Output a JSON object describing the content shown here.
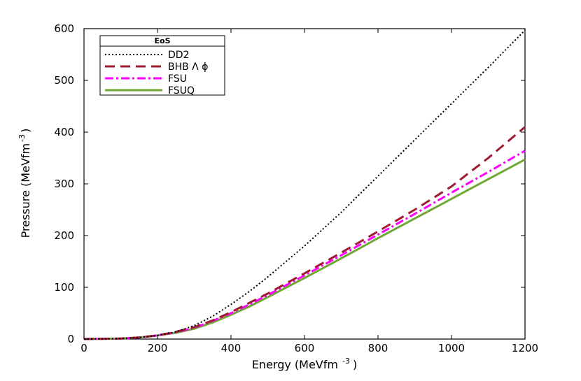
{
  "chart_data": {
    "type": "line",
    "xlabel": "Energy (MeVfm",
    "xlabel_sup": "-3",
    "xlabel_end": ")",
    "ylabel": "Pressure (MeVfm",
    "ylabel_sup": "-3",
    "ylabel_end": ")",
    "xlim": [
      0,
      1200
    ],
    "ylim": [
      0,
      600
    ],
    "xticks": [
      0,
      200,
      400,
      600,
      800,
      1000,
      1200
    ],
    "yticks": [
      0,
      100,
      200,
      300,
      400,
      500,
      600
    ],
    "grid": false,
    "legend": {
      "title": "EoS",
      "placement": "top-left"
    },
    "series": [
      {
        "name": "DD2",
        "color": "#000000",
        "style": "dotted",
        "x": [
          0,
          100,
          150,
          200,
          250,
          300,
          350,
          400,
          450,
          500,
          600,
          700,
          800,
          900,
          1000,
          1100,
          1200
        ],
        "y": [
          0,
          1,
          3,
          7,
          14,
          26,
          44,
          67,
          92,
          120,
          180,
          245,
          315,
          385,
          455,
          525,
          597
        ]
      },
      {
        "name": "BHB Λ ϕ",
        "color": "#9e1b32",
        "style": "dashed",
        "x": [
          0,
          100,
          150,
          200,
          250,
          300,
          350,
          400,
          450,
          500,
          600,
          700,
          800,
          900,
          1000,
          1100,
          1200
        ],
        "y": [
          0,
          1,
          3,
          7,
          14,
          23,
          36,
          52,
          70,
          88,
          127,
          167,
          208,
          250,
          295,
          350,
          410
        ]
      },
      {
        "name": "FSU",
        "color": "#ff00ff",
        "style": "dashdot",
        "x": [
          0,
          100,
          150,
          200,
          250,
          300,
          350,
          400,
          450,
          500,
          600,
          700,
          800,
          900,
          1000,
          1100,
          1200
        ],
        "y": [
          0,
          1,
          3,
          7,
          13,
          22,
          35,
          50,
          67,
          85,
          123,
          162,
          202,
          242,
          283,
          323,
          364
        ]
      },
      {
        "name": "FSUQ",
        "color": "#6ea832",
        "style": "solid",
        "x": [
          0,
          100,
          150,
          200,
          250,
          300,
          350,
          400,
          450,
          500,
          600,
          700,
          800,
          900,
          1000,
          1100,
          1200
        ],
        "y": [
          0,
          1,
          3,
          7,
          12,
          20,
          32,
          47,
          63,
          81,
          118,
          156,
          195,
          233,
          271,
          309,
          347
        ]
      }
    ]
  }
}
